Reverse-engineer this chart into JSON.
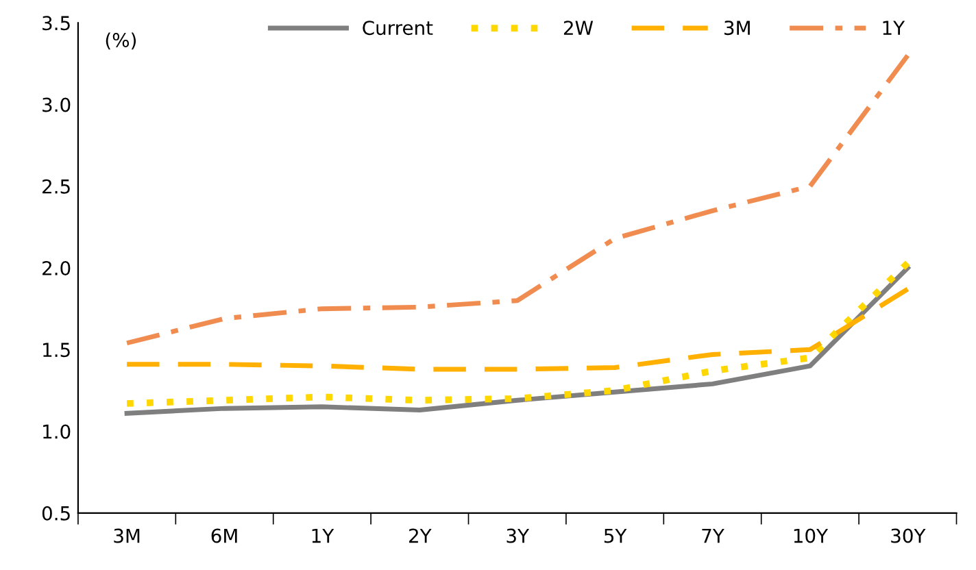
{
  "chart_data": {
    "type": "line",
    "ylabel": "(%)",
    "categories": [
      "3M",
      "6M",
      "1Y",
      "2Y",
      "3Y",
      "5Y",
      "7Y",
      "10Y",
      "30Y"
    ],
    "series": [
      {
        "name": "Current",
        "color": "#7f7f7f",
        "line_style": "solid",
        "values": [
          1.11,
          1.14,
          1.15,
          1.13,
          1.19,
          1.24,
          1.29,
          1.4,
          2.0
        ]
      },
      {
        "name": "2W",
        "color": "#ffd700",
        "line_style": "dotted",
        "values": [
          1.17,
          1.19,
          1.21,
          1.19,
          1.2,
          1.25,
          1.37,
          1.45,
          2.03
        ]
      },
      {
        "name": "3M",
        "color": "#ffb000",
        "line_style": "dashed",
        "values": [
          1.41,
          1.41,
          1.4,
          1.38,
          1.38,
          1.39,
          1.47,
          1.5,
          1.87
        ]
      },
      {
        "name": "1Y",
        "color": "#f08c50",
        "line_style": "dashdot",
        "values": [
          1.54,
          1.69,
          1.75,
          1.76,
          1.8,
          2.18,
          2.35,
          2.5,
          3.3
        ]
      }
    ],
    "ylim": [
      0.5,
      3.5
    ],
    "yticks": [
      0.5,
      {
        "value": 1,
        "label": "1.0"
      },
      1.5,
      {
        "value": 2,
        "label": "2.0"
      },
      2.5,
      {
        "value": 3,
        "label": "3.0"
      },
      3.5
    ],
    "grid": false,
    "legend": "top",
    "marker": "none"
  }
}
